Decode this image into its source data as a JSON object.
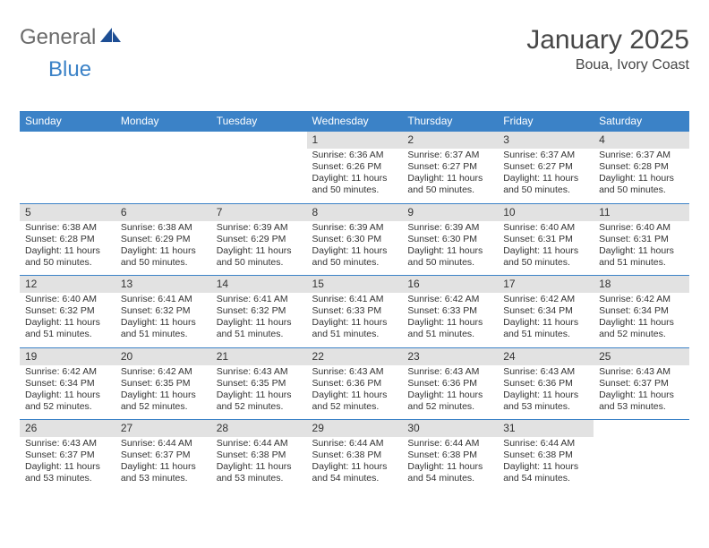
{
  "logo": {
    "word1": "General",
    "word2": "Blue",
    "sail_fill": "#1d4e94"
  },
  "title": {
    "month": "January 2025",
    "location": "Boua, Ivory Coast"
  },
  "colors": {
    "header_bg": "#3b82c7",
    "header_text": "#ffffff",
    "daynum_bg": "#e2e2e2",
    "row_border": "#3b82c7",
    "text": "#333333"
  },
  "weekday_labels": [
    "Sunday",
    "Monday",
    "Tuesday",
    "Wednesday",
    "Thursday",
    "Friday",
    "Saturday"
  ],
  "weeks": [
    [
      null,
      null,
      null,
      {
        "n": "1",
        "sr": "6:36 AM",
        "ss": "6:26 PM",
        "dl": "11 hours and 50 minutes."
      },
      {
        "n": "2",
        "sr": "6:37 AM",
        "ss": "6:27 PM",
        "dl": "11 hours and 50 minutes."
      },
      {
        "n": "3",
        "sr": "6:37 AM",
        "ss": "6:27 PM",
        "dl": "11 hours and 50 minutes."
      },
      {
        "n": "4",
        "sr": "6:37 AM",
        "ss": "6:28 PM",
        "dl": "11 hours and 50 minutes."
      }
    ],
    [
      {
        "n": "5",
        "sr": "6:38 AM",
        "ss": "6:28 PM",
        "dl": "11 hours and 50 minutes."
      },
      {
        "n": "6",
        "sr": "6:38 AM",
        "ss": "6:29 PM",
        "dl": "11 hours and 50 minutes."
      },
      {
        "n": "7",
        "sr": "6:39 AM",
        "ss": "6:29 PM",
        "dl": "11 hours and 50 minutes."
      },
      {
        "n": "8",
        "sr": "6:39 AM",
        "ss": "6:30 PM",
        "dl": "11 hours and 50 minutes."
      },
      {
        "n": "9",
        "sr": "6:39 AM",
        "ss": "6:30 PM",
        "dl": "11 hours and 50 minutes."
      },
      {
        "n": "10",
        "sr": "6:40 AM",
        "ss": "6:31 PM",
        "dl": "11 hours and 50 minutes."
      },
      {
        "n": "11",
        "sr": "6:40 AM",
        "ss": "6:31 PM",
        "dl": "11 hours and 51 minutes."
      }
    ],
    [
      {
        "n": "12",
        "sr": "6:40 AM",
        "ss": "6:32 PM",
        "dl": "11 hours and 51 minutes."
      },
      {
        "n": "13",
        "sr": "6:41 AM",
        "ss": "6:32 PM",
        "dl": "11 hours and 51 minutes."
      },
      {
        "n": "14",
        "sr": "6:41 AM",
        "ss": "6:32 PM",
        "dl": "11 hours and 51 minutes."
      },
      {
        "n": "15",
        "sr": "6:41 AM",
        "ss": "6:33 PM",
        "dl": "11 hours and 51 minutes."
      },
      {
        "n": "16",
        "sr": "6:42 AM",
        "ss": "6:33 PM",
        "dl": "11 hours and 51 minutes."
      },
      {
        "n": "17",
        "sr": "6:42 AM",
        "ss": "6:34 PM",
        "dl": "11 hours and 51 minutes."
      },
      {
        "n": "18",
        "sr": "6:42 AM",
        "ss": "6:34 PM",
        "dl": "11 hours and 52 minutes."
      }
    ],
    [
      {
        "n": "19",
        "sr": "6:42 AM",
        "ss": "6:34 PM",
        "dl": "11 hours and 52 minutes."
      },
      {
        "n": "20",
        "sr": "6:42 AM",
        "ss": "6:35 PM",
        "dl": "11 hours and 52 minutes."
      },
      {
        "n": "21",
        "sr": "6:43 AM",
        "ss": "6:35 PM",
        "dl": "11 hours and 52 minutes."
      },
      {
        "n": "22",
        "sr": "6:43 AM",
        "ss": "6:36 PM",
        "dl": "11 hours and 52 minutes."
      },
      {
        "n": "23",
        "sr": "6:43 AM",
        "ss": "6:36 PM",
        "dl": "11 hours and 52 minutes."
      },
      {
        "n": "24",
        "sr": "6:43 AM",
        "ss": "6:36 PM",
        "dl": "11 hours and 53 minutes."
      },
      {
        "n": "25",
        "sr": "6:43 AM",
        "ss": "6:37 PM",
        "dl": "11 hours and 53 minutes."
      }
    ],
    [
      {
        "n": "26",
        "sr": "6:43 AM",
        "ss": "6:37 PM",
        "dl": "11 hours and 53 minutes."
      },
      {
        "n": "27",
        "sr": "6:44 AM",
        "ss": "6:37 PM",
        "dl": "11 hours and 53 minutes."
      },
      {
        "n": "28",
        "sr": "6:44 AM",
        "ss": "6:38 PM",
        "dl": "11 hours and 53 minutes."
      },
      {
        "n": "29",
        "sr": "6:44 AM",
        "ss": "6:38 PM",
        "dl": "11 hours and 54 minutes."
      },
      {
        "n": "30",
        "sr": "6:44 AM",
        "ss": "6:38 PM",
        "dl": "11 hours and 54 minutes."
      },
      {
        "n": "31",
        "sr": "6:44 AM",
        "ss": "6:38 PM",
        "dl": "11 hours and 54 minutes."
      },
      null
    ]
  ],
  "labels": {
    "sunrise": "Sunrise:",
    "sunset": "Sunset:",
    "daylight": "Daylight:"
  }
}
